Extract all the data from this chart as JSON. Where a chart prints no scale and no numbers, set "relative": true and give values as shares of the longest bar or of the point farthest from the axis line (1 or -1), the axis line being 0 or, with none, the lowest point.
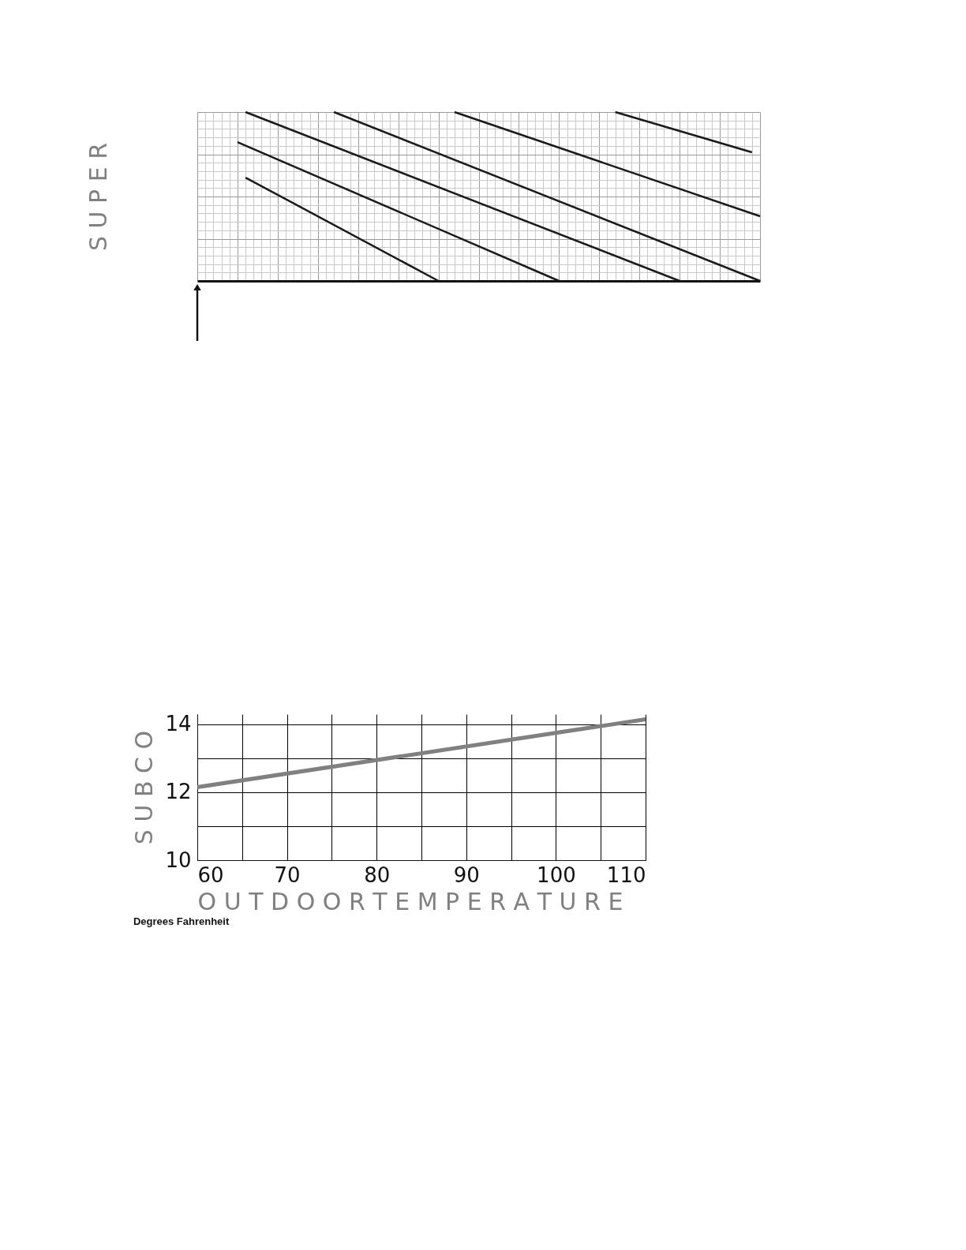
{
  "chart_data": [
    {
      "type": "line",
      "ylabel": "S U P E R",
      "relative": true,
      "grid": true,
      "legend": false,
      "line_style": "solid",
      "marker": "none",
      "categories": [
        null,
        null,
        null,
        null,
        null,
        null,
        null,
        null,
        null,
        null,
        null,
        null,
        null,
        null,
        null,
        null,
        null,
        null,
        null,
        null,
        null,
        null,
        null,
        null,
        null,
        null,
        null,
        null,
        null,
        null,
        null,
        null,
        null,
        null,
        null,
        null,
        null,
        null,
        null,
        null,
        null,
        null,
        null,
        null,
        null,
        null,
        null,
        null,
        null,
        null,
        null,
        null,
        null,
        null,
        null,
        null,
        null,
        null,
        null,
        null,
        null,
        null,
        null,
        null,
        null,
        null,
        null,
        null,
        null,
        null,
        null
      ],
      "series": [
        {
          "color": "#1a1a1a",
          "values": [
            null,
            null,
            null,
            null,
            null,
            null,
            0.612,
            null,
            null,
            null,
            null,
            null,
            null,
            null,
            null,
            null,
            null,
            null,
            null,
            null,
            null,
            null,
            null,
            null,
            null,
            null,
            null,
            null,
            null,
            null,
            0,
            null,
            null,
            null,
            null,
            null,
            null,
            null,
            null,
            null,
            null,
            null,
            null,
            null,
            null,
            null,
            null,
            null,
            null,
            null,
            null,
            null,
            null,
            null,
            null,
            null,
            null,
            null,
            null,
            null,
            null,
            null,
            null,
            null,
            null,
            null,
            null,
            null,
            null,
            null,
            null
          ]
        },
        {
          "color": "#1a1a1a",
          "values": [
            null,
            null,
            null,
            null,
            null,
            0.822,
            null,
            null,
            null,
            null,
            null,
            null,
            null,
            null,
            null,
            null,
            null,
            null,
            null,
            null,
            null,
            null,
            null,
            null,
            null,
            null,
            null,
            null,
            null,
            null,
            null,
            null,
            null,
            null,
            null,
            null,
            null,
            null,
            null,
            null,
            null,
            null,
            null,
            null,
            null,
            0,
            null,
            null,
            null,
            null,
            null,
            null,
            null,
            null,
            null,
            null,
            null,
            null,
            null,
            null,
            null,
            null,
            null,
            null,
            null,
            null,
            null,
            null,
            null,
            null,
            null
          ]
        },
        {
          "color": "#1a1a1a",
          "values": [
            null,
            null,
            null,
            null,
            null,
            null,
            1,
            null,
            null,
            null,
            null,
            null,
            null,
            null,
            null,
            null,
            null,
            null,
            null,
            null,
            null,
            null,
            null,
            null,
            null,
            null,
            null,
            null,
            null,
            null,
            null,
            null,
            null,
            null,
            null,
            null,
            null,
            null,
            null,
            null,
            null,
            null,
            null,
            null,
            null,
            null,
            null,
            null,
            null,
            null,
            null,
            null,
            null,
            null,
            null,
            null,
            null,
            null,
            null,
            null,
            0,
            null,
            null,
            null,
            null,
            null,
            null,
            null,
            null,
            null,
            null
          ]
        },
        {
          "color": "#1a1a1a",
          "values": [
            null,
            null,
            null,
            null,
            null,
            null,
            null,
            null,
            null,
            null,
            null,
            null,
            null,
            null,
            null,
            null,
            null,
            1,
            null,
            null,
            null,
            null,
            null,
            null,
            null,
            null,
            null,
            null,
            null,
            null,
            null,
            null,
            null,
            null,
            null,
            null,
            null,
            null,
            null,
            null,
            null,
            null,
            null,
            null,
            null,
            null,
            null,
            null,
            null,
            null,
            null,
            null,
            null,
            null,
            null,
            null,
            null,
            null,
            null,
            null,
            null,
            null,
            null,
            null,
            null,
            null,
            null,
            null,
            null,
            null,
            0
          ]
        },
        {
          "color": "#1a1a1a",
          "values": [
            null,
            null,
            null,
            null,
            null,
            null,
            null,
            null,
            null,
            null,
            null,
            null,
            null,
            null,
            null,
            null,
            null,
            null,
            null,
            null,
            null,
            null,
            null,
            null,
            null,
            null,
            null,
            null,
            null,
            null,
            null,
            null,
            1,
            null,
            null,
            null,
            null,
            null,
            null,
            null,
            null,
            null,
            null,
            null,
            null,
            null,
            null,
            null,
            null,
            null,
            null,
            null,
            null,
            null,
            null,
            null,
            null,
            null,
            null,
            null,
            null,
            null,
            null,
            null,
            null,
            null,
            null,
            null,
            null,
            null,
            0.383
          ]
        },
        {
          "color": "#1a1a1a",
          "values": [
            null,
            null,
            null,
            null,
            null,
            null,
            null,
            null,
            null,
            null,
            null,
            null,
            null,
            null,
            null,
            null,
            null,
            null,
            null,
            null,
            null,
            null,
            null,
            null,
            null,
            null,
            null,
            null,
            null,
            null,
            null,
            null,
            null,
            null,
            null,
            null,
            null,
            null,
            null,
            null,
            null,
            null,
            null,
            null,
            null,
            null,
            null,
            null,
            null,
            null,
            null,
            null,
            1,
            null,
            null,
            null,
            null,
            null,
            null,
            null,
            null,
            null,
            null,
            null,
            null,
            null,
            null,
            null,
            null,
            0.762,
            null
          ]
        }
      ]
    },
    {
      "type": "line",
      "ylabel": "S U B C O",
      "xlabel": "O U T D O O R   T E M P E R A T U R E",
      "annotations": [
        "Degrees Fahrenheit"
      ],
      "grid": true,
      "legend": false,
      "line_style": "solid",
      "marker": "none",
      "x": [
        60,
        110
      ],
      "xlim": [
        60,
        110
      ],
      "ylim": [
        10,
        14.3
      ],
      "xticks": [
        60,
        {
          "value": 65,
          "label": null
        },
        70,
        {
          "value": 75,
          "label": null
        },
        80,
        {
          "value": 85,
          "label": null
        },
        90,
        {
          "value": 95,
          "label": null
        },
        100,
        {
          "value": 105,
          "label": null
        },
        110
      ],
      "yticks": [
        10,
        {
          "value": 11,
          "label": null
        },
        12,
        {
          "value": 13,
          "label": null
        },
        14
      ],
      "series": [
        {
          "color": "#808080",
          "values": [
            12.15,
            14.15
          ]
        }
      ]
    }
  ]
}
